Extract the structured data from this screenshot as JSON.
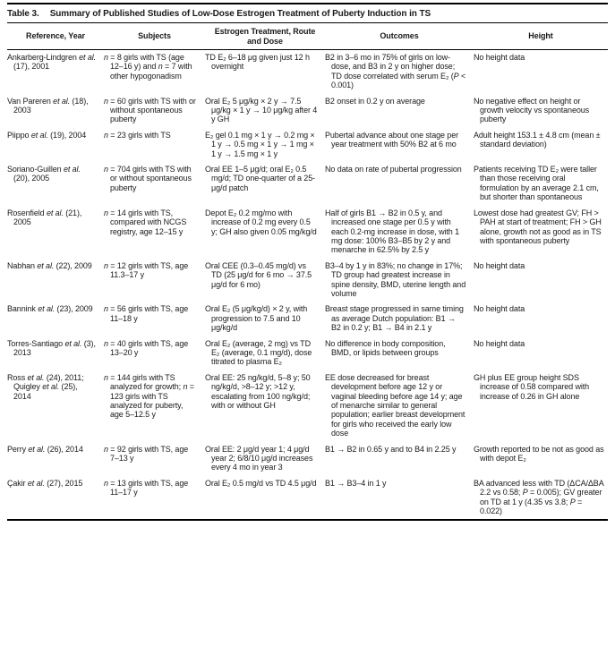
{
  "table": {
    "label": "Table 3.",
    "title": "Summary of Published Studies of Low-Dose Estrogen Treatment of Puberty Induction in TS",
    "columns": [
      "Reference, Year",
      "Subjects",
      "Estrogen Treatment, Route and Dose",
      "Outcomes",
      "Height"
    ],
    "rows": [
      {
        "reference": "Ankarberg-Lindgren et al. (17), 2001",
        "subjects": "n = 8 girls with TS (age 12–16 y) and n = 7 with other hypogonadism",
        "treatment": "TD E₂ 6–18 μg given just 12 h overnight",
        "outcomes": "B2 in 3–6 mo in 75% of girls on low-dose, and B3 in 2 y on higher dose; TD dose correlated with serum E₂ (P < 0.001)",
        "height": "No height data"
      },
      {
        "reference": "Van Pareren et al. (18), 2003",
        "subjects": "n = 60 girls with TS with or without spontaneous puberty",
        "treatment": "Oral E₂ 5 μg/kg × 2 y → 7.5 μg/kg × 1 y → 10 μg/kg after 4 y GH",
        "outcomes": "B2 onset in 0.2 y on average",
        "height": "No negative effect on height or growth velocity vs spontaneous puberty"
      },
      {
        "reference": "Piippo et al. (19), 2004",
        "subjects": "n = 23 girls with TS",
        "treatment": "E₂ gel 0.1 mg × 1 y → 0.2 mg × 1 y → 0.5 mg × 1 y → 1 mg × 1 y → 1.5 mg × 1 y",
        "outcomes": "Pubertal advance about one stage per year treatment with 50% B2 at 6 mo",
        "height": "Adult height 153.1 ± 4.8 cm (mean ± standard deviation)"
      },
      {
        "reference": "Soriano-Guillen et al. (20), 2005",
        "subjects": "n = 704 girls with TS with or without spontaneous puberty",
        "treatment": "Oral EE 1–5 μg/d; oral E₂ 0.5 mg/d; TD one-quarter of a 25-μg/d patch",
        "outcomes": "No data on rate of pubertal progression",
        "height": "Patients receiving TD E₂ were taller than those receiving oral formulation by an average 2.1 cm, but shorter than spontaneous"
      },
      {
        "reference": "Rosenfield et al. (21), 2005",
        "subjects": "n = 14 girls with TS, compared with NCGS registry, age 12–15 y",
        "treatment": "Depot E₂ 0.2 mg/mo with increase of 0.2 mg every 0.5 y; GH also given 0.05 mg/kg/d",
        "outcomes": "Half of girls B1 → B2 in 0.5 y, and increased one stage per 0.5 y with each 0.2-mg increase in dose, with 1 mg dose: 100% B3–B5 by 2 y and menarche in 62.5% by 2.5 y",
        "height": "Lowest dose had greatest GV; FH > PAH at start of treatment; FH > GH alone, growth not as good as in TS with spontaneous puberty"
      },
      {
        "reference": "Nabhan et al. (22), 2009",
        "subjects": "n = 12 girls with TS, age 11.3–17 y",
        "treatment": "Oral CEE (0.3–0.45 mg/d) vs TD (25 μg/d for 6 mo → 37.5 μg/d for 6 mo)",
        "outcomes": "B3–4 by 1 y in 83%; no change in 17%; TD group had greatest increase in spine density, BMD, uterine length and volume",
        "height": "No height data"
      },
      {
        "reference": "Bannink et al. (23), 2009",
        "subjects": "n = 56 girls with TS, age 11–18 y",
        "treatment": "Oral E₂ (5 μg/kg/d) × 2 y, with progression to 7.5 and 10 μg/kg/d",
        "outcomes": "Breast stage progressed in same timing as average Dutch population: B1 → B2 in 0.2 y; B1 → B4 in 2.1 y",
        "height": "No height data"
      },
      {
        "reference": "Torres-Santiago et al. (3), 2013",
        "subjects": "n = 40 girls with TS, age 13–20 y",
        "treatment": "Oral E₂ (average, 2 mg) vs TD E₂ (average, 0.1 mg/d), dose titrated to plasma E₂",
        "outcomes": "No difference in body composition, BMD, or lipids between groups",
        "height": "No height data"
      },
      {
        "reference": "Ross et al. (24), 2011; Quigley et al. (25), 2014",
        "subjects": "n = 144 girls with TS analyzed for growth; n = 123 girls with TS analyzed for puberty, age 5–12.5 y",
        "treatment": "Oral EE: 25 ng/kg/d, 5–8 y; 50 ng/kg/d, >8–12 y; >12 y, escalating from 100 ng/kg/d; with or without GH",
        "outcomes": "EE dose decreased for breast development before age 12 y or vaginal bleeding before age 14 y; age of menarche similar to general population; earlier breast development for girls who received the early low dose",
        "height": "GH plus EE group height SDS increase of 0.58 compared with increase of 0.26 in GH alone"
      },
      {
        "reference": "Perry et al. (26), 2014",
        "subjects": "n = 92 girls with TS, age 7–13 y",
        "treatment": "Oral EE: 2 μg/d year 1; 4 μg/d year 2; 6/8/10 μg/d increases every 4 mo in year 3",
        "outcomes": "B1 → B2 in 0.65 y and to B4 in 2.25 y",
        "height": "Growth reported to be not as good as with depot E₂"
      },
      {
        "reference": "Çakir et al. (27), 2015",
        "subjects": "n = 13 girls with TS, age 11–17 y",
        "treatment": "Oral E₂ 0.5 mg/d vs TD 4.5 μg/d",
        "outcomes": "B1 → B3–4 in 1 y",
        "height": "BA advanced less with TD (ΔCA/ΔBA 2.2 vs 0.58; P = 0.005); GV greater on TD at 1 y (4.35 vs 3.8; P = 0.022)"
      }
    ]
  }
}
